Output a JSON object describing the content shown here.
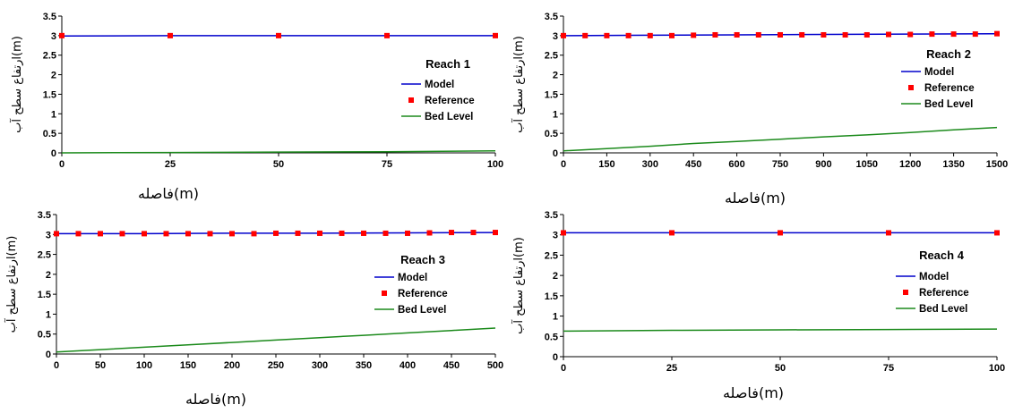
{
  "chart_data": [
    {
      "type": "line",
      "title": "Reach 1",
      "xlabel": "فاصله(m)",
      "ylabel": "ارتفاع سطح آب(m)",
      "xlim": [
        0,
        100
      ],
      "ylim": [
        0,
        3.5
      ],
      "x_ticks": [
        "0",
        "25",
        "50",
        "75",
        "100"
      ],
      "y_ticks": [
        "0",
        "0.5",
        "1",
        "1.5",
        "2",
        "2.5",
        "3",
        "3.5"
      ],
      "series": [
        {
          "name": "Model",
          "color": "#0000cc",
          "style": "line",
          "x": [
            0,
            25,
            50,
            75,
            100
          ],
          "y": [
            2.99,
            3.0,
            3.0,
            3.0,
            3.0
          ]
        },
        {
          "name": "Reference",
          "color": "#ff0000",
          "style": "marker",
          "x": [
            0,
            25,
            50,
            75,
            100
          ],
          "y": [
            3.0,
            3.0,
            3.0,
            3.0,
            3.0
          ]
        },
        {
          "name": "Bed Level",
          "color": "#1b8a1b",
          "style": "line",
          "x": [
            0,
            25,
            50,
            75,
            100
          ],
          "y": [
            0.0,
            0.01,
            0.02,
            0.03,
            0.05
          ]
        }
      ],
      "grid": false,
      "legend_position": "right"
    },
    {
      "type": "line",
      "title": "Reach 2",
      "xlabel": "فاصله(m)",
      "ylabel": "ارتفاع سطح آب(m)",
      "xlim": [
        0,
        1500
      ],
      "ylim": [
        0,
        3.5
      ],
      "x_ticks": [
        "0",
        "150",
        "300",
        "450",
        "600",
        "750",
        "900",
        "1050",
        "1200",
        "1350",
        "1500"
      ],
      "y_ticks": [
        "0",
        "0.5",
        "1",
        "1.5",
        "2",
        "2.5",
        "3",
        "3.5"
      ],
      "series": [
        {
          "name": "Model",
          "color": "#0000cc",
          "style": "line",
          "x": [
            0,
            300,
            600,
            900,
            1200,
            1500
          ],
          "y": [
            3.0,
            3.01,
            3.02,
            3.03,
            3.04,
            3.05
          ]
        },
        {
          "name": "Reference",
          "color": "#ff0000",
          "style": "marker",
          "x": [
            0,
            75,
            150,
            225,
            300,
            375,
            450,
            525,
            600,
            675,
            750,
            825,
            900,
            975,
            1050,
            1125,
            1200,
            1275,
            1350,
            1425,
            1500
          ],
          "y": [
            3.0,
            3.0,
            3.0,
            3.0,
            3.0,
            3.0,
            3.01,
            3.02,
            3.02,
            3.02,
            3.02,
            3.02,
            3.02,
            3.02,
            3.02,
            3.03,
            3.03,
            3.04,
            3.04,
            3.04,
            3.05
          ]
        },
        {
          "name": "Bed Level",
          "color": "#1b8a1b",
          "style": "line",
          "x": [
            0,
            150,
            300,
            450,
            600,
            750,
            900,
            1050,
            1200,
            1350,
            1500
          ],
          "y": [
            0.05,
            0.11,
            0.17,
            0.24,
            0.29,
            0.35,
            0.41,
            0.46,
            0.52,
            0.59,
            0.65
          ]
        }
      ],
      "grid": false,
      "legend_position": "right"
    },
    {
      "type": "line",
      "title": "Reach 3",
      "xlabel": "فاصله(m)",
      "ylabel": "ارتفاع سطح آب(m)",
      "xlim": [
        0,
        500
      ],
      "ylim": [
        0,
        3.5
      ],
      "x_ticks": [
        "0",
        "50",
        "100",
        "150",
        "200",
        "250",
        "300",
        "350",
        "400",
        "450",
        "500"
      ],
      "y_ticks": [
        "0",
        "0.5",
        "1",
        "1.5",
        "2",
        "2.5",
        "3",
        "3.5"
      ],
      "series": [
        {
          "name": "Model",
          "color": "#0000cc",
          "style": "line",
          "x": [
            0,
            100,
            200,
            300,
            400,
            500
          ],
          "y": [
            3.02,
            3.02,
            3.03,
            3.03,
            3.04,
            3.05
          ]
        },
        {
          "name": "Reference",
          "color": "#ff0000",
          "style": "marker",
          "x": [
            0,
            25,
            50,
            75,
            100,
            125,
            150,
            175,
            200,
            225,
            250,
            275,
            300,
            325,
            350,
            375,
            400,
            425,
            450,
            475,
            500
          ],
          "y": [
            3.02,
            3.02,
            3.02,
            3.02,
            3.02,
            3.02,
            3.02,
            3.02,
            3.02,
            3.02,
            3.03,
            3.03,
            3.03,
            3.03,
            3.03,
            3.03,
            3.03,
            3.04,
            3.05,
            3.05,
            3.05
          ]
        },
        {
          "name": "Bed Level",
          "color": "#1b8a1b",
          "style": "line",
          "x": [
            0,
            50,
            100,
            150,
            200,
            250,
            300,
            350,
            400,
            450,
            500
          ],
          "y": [
            0.05,
            0.11,
            0.17,
            0.23,
            0.29,
            0.35,
            0.41,
            0.47,
            0.53,
            0.59,
            0.65
          ]
        }
      ],
      "grid": false,
      "legend_position": "right"
    },
    {
      "type": "line",
      "title": "Reach 4",
      "xlabel": "فاصله(m)",
      "ylabel": "ارتفاع سطح آب(m)",
      "xlim": [
        0,
        100
      ],
      "ylim": [
        0,
        3.5
      ],
      "x_ticks": [
        "0",
        "25",
        "50",
        "75",
        "100"
      ],
      "y_ticks": [
        "0",
        "0.5",
        "1",
        "1.5",
        "2",
        "2.5",
        "3",
        "3.5"
      ],
      "series": [
        {
          "name": "Model",
          "color": "#0000cc",
          "style": "line",
          "x": [
            0,
            25,
            50,
            75,
            100
          ],
          "y": [
            3.05,
            3.05,
            3.05,
            3.05,
            3.05
          ]
        },
        {
          "name": "Reference",
          "color": "#ff0000",
          "style": "marker",
          "x": [
            0,
            25,
            50,
            75,
            100
          ],
          "y": [
            3.05,
            3.05,
            3.05,
            3.05,
            3.05
          ]
        },
        {
          "name": "Bed Level",
          "color": "#1b8a1b",
          "style": "line",
          "x": [
            0,
            25,
            50,
            75,
            100
          ],
          "y": [
            0.63,
            0.65,
            0.66,
            0.67,
            0.68
          ]
        }
      ],
      "grid": false,
      "legend_position": "right"
    }
  ]
}
